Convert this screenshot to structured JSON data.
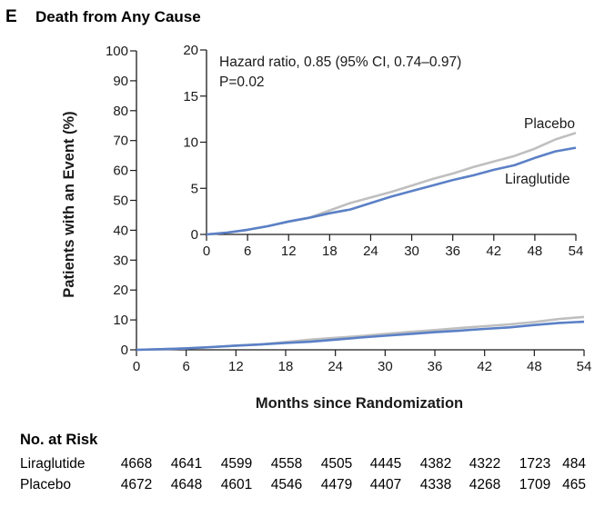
{
  "panel": {
    "letter": "E",
    "title": "Death from Any Cause"
  },
  "colors": {
    "liraglutide": "#5b80c6",
    "placebo": "#bfbfbf",
    "axis": "#1a1a1a"
  },
  "chart_data": [
    {
      "type": "line",
      "role": "main",
      "xlabel": "Months since Randomization",
      "ylabel": "Patients with an Event (%)",
      "xlim": [
        0,
        54
      ],
      "ylim": [
        0,
        100
      ],
      "x_ticks": [
        0,
        6,
        12,
        18,
        24,
        30,
        36,
        42,
        48,
        54
      ],
      "y_ticks": [
        0,
        10,
        20,
        30,
        40,
        50,
        60,
        70,
        80,
        90,
        100
      ],
      "grid": false,
      "series": [
        {
          "name": "Placebo",
          "color": "#bfbfbf",
          "x": [
            0,
            3,
            6,
            9,
            12,
            15,
            18,
            21,
            24,
            27,
            30,
            33,
            36,
            39,
            42,
            45,
            48,
            51,
            54
          ],
          "y": [
            0,
            0.2,
            0.5,
            0.9,
            1.4,
            1.8,
            2.6,
            3.4,
            4.0,
            4.6,
            5.3,
            6.0,
            6.6,
            7.3,
            7.9,
            8.5,
            9.3,
            10.3,
            11.0
          ]
        },
        {
          "name": "Liraglutide",
          "color": "#5b80c6",
          "x": [
            0,
            3,
            6,
            9,
            12,
            15,
            18,
            21,
            24,
            27,
            30,
            33,
            36,
            39,
            42,
            45,
            48,
            51,
            54
          ],
          "y": [
            0,
            0.2,
            0.5,
            0.9,
            1.4,
            1.8,
            2.3,
            2.7,
            3.4,
            4.1,
            4.7,
            5.3,
            5.9,
            6.4,
            7.0,
            7.5,
            8.3,
            9.0,
            9.4
          ]
        }
      ]
    },
    {
      "type": "line",
      "role": "inset",
      "xlim": [
        0,
        54
      ],
      "ylim": [
        0,
        20
      ],
      "x_ticks": [
        0,
        6,
        12,
        18,
        24,
        30,
        36,
        42,
        48,
        54
      ],
      "y_ticks": [
        0,
        5,
        10,
        15,
        20
      ],
      "annotation": [
        "Hazard ratio, 0.85 (95% CI, 0.74–0.97)",
        "P=0.02"
      ],
      "series": [
        {
          "name": "Placebo",
          "color": "#bfbfbf",
          "x": [
            0,
            3,
            6,
            9,
            12,
            15,
            18,
            21,
            24,
            27,
            30,
            33,
            36,
            39,
            42,
            45,
            48,
            51,
            54
          ],
          "y": [
            0,
            0.2,
            0.5,
            0.9,
            1.4,
            1.8,
            2.6,
            3.4,
            4.0,
            4.6,
            5.3,
            6.0,
            6.6,
            7.3,
            7.9,
            8.5,
            9.3,
            10.3,
            11.0
          ]
        },
        {
          "name": "Liraglutide",
          "color": "#5b80c6",
          "x": [
            0,
            3,
            6,
            9,
            12,
            15,
            18,
            21,
            24,
            27,
            30,
            33,
            36,
            39,
            42,
            45,
            48,
            51,
            54
          ],
          "y": [
            0,
            0.2,
            0.5,
            0.9,
            1.4,
            1.8,
            2.3,
            2.7,
            3.4,
            4.1,
            4.7,
            5.3,
            5.9,
            6.4,
            7.0,
            7.5,
            8.3,
            9.0,
            9.4
          ]
        }
      ]
    }
  ],
  "risk_table": {
    "title": "No. at Risk",
    "rows": [
      {
        "label": "Liraglutide",
        "values": [
          "4668",
          "4641",
          "4599",
          "4558",
          "4505",
          "4445",
          "4382",
          "4322",
          "1723",
          "484"
        ]
      },
      {
        "label": "Placebo",
        "values": [
          "4672",
          "4648",
          "4601",
          "4546",
          "4479",
          "4407",
          "4338",
          "4268",
          "1709",
          "465"
        ]
      }
    ]
  }
}
